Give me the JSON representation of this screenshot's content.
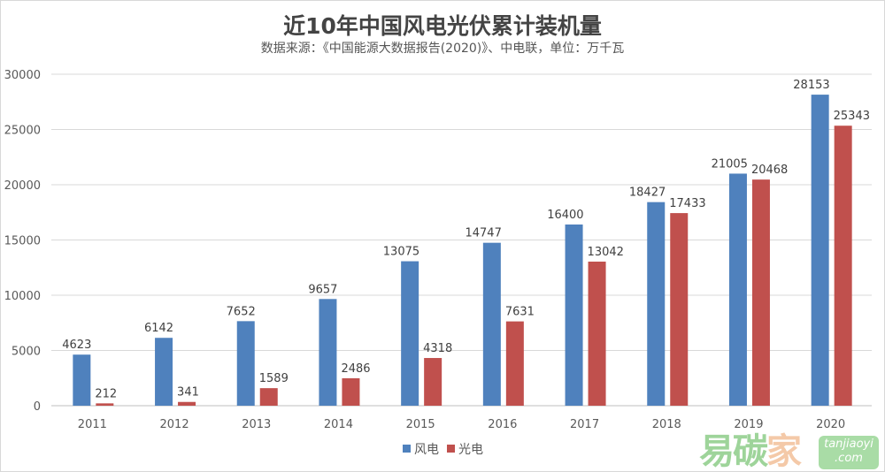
{
  "chart_data": {
    "type": "bar",
    "title": "近10年中国风电光伏累计装机量",
    "subtitle": "数据来源：《中国能源大数据报告(2020)》、中电联，单位：万千瓦",
    "categories": [
      "2011",
      "2012",
      "2013",
      "2014",
      "2015",
      "2016",
      "2017",
      "2018",
      "2019",
      "2020"
    ],
    "series": [
      {
        "name": "风电",
        "color": "#4f81bd",
        "values": [
          4623,
          6142,
          7652,
          9657,
          13075,
          14747,
          16400,
          18427,
          21005,
          28153
        ]
      },
      {
        "name": "光电",
        "color": "#c0504d",
        "values": [
          212,
          341,
          1589,
          2486,
          4318,
          7631,
          13042,
          17433,
          20468,
          25343
        ]
      }
    ],
    "ylim": [
      0,
      30000
    ],
    "yticks": [
      "0",
      "5000",
      "10000",
      "15000",
      "20000",
      "25000",
      "30000"
    ],
    "grid": true,
    "legend": "bottom-left"
  },
  "watermark": {
    "logo": "易碳家",
    "site": "tanjiaoyi",
    ".com": ".com"
  }
}
